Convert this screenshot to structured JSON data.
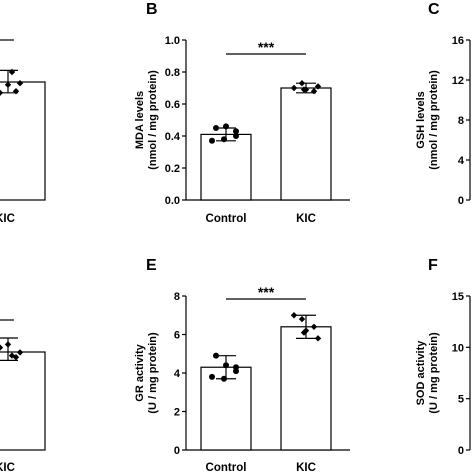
{
  "panels": [
    {
      "id": "A",
      "label": "",
      "ylabel": [
        "",
        ""
      ],
      "ylim": [
        0,
        1
      ],
      "ticks": [],
      "categories": [
        "",
        "KIC"
      ],
      "significance": "",
      "kic_mean": 0.74,
      "kic_sd": 0.07,
      "kic_points": [
        0.68,
        0.72,
        0.73,
        0.8,
        0.67,
        0.68
      ]
    },
    {
      "id": "B",
      "label": "B",
      "ylabel": [
        "MDA levels",
        "(nmol / mg protein)"
      ],
      "ylim": [
        0,
        1.0
      ],
      "ticks": [
        "0.0",
        "0.2",
        "0.4",
        "0.6",
        "0.8",
        "1.0"
      ],
      "categories": [
        "Control",
        "KIC"
      ],
      "significance": "***"
    },
    {
      "id": "C",
      "label": "C",
      "ylabel": [
        "GSH levels",
        "(nmol / mg protein)"
      ],
      "ylim": [
        0,
        16
      ],
      "ticks": [
        "0",
        "4",
        "8",
        "12",
        "16"
      ],
      "categories": [],
      "significance": ""
    },
    {
      "id": "D",
      "label": "",
      "ylabel": [
        "",
        ""
      ],
      "ylim": [
        0,
        1
      ],
      "ticks": [],
      "categories": [
        "",
        "KIC"
      ],
      "significance": "",
      "kic_mean": 0.63,
      "kic_sd": 0.07,
      "kic_points": [
        0.64,
        0.66,
        0.61,
        0.59,
        0.64,
        0.58
      ]
    },
    {
      "id": "E",
      "label": "E",
      "ylabel": [
        "GR activity",
        "(U / mg protein)"
      ],
      "ylim": [
        0,
        8
      ],
      "ticks": [
        "0",
        "2",
        "4",
        "6",
        "8"
      ],
      "categories": [
        "Control",
        "KIC"
      ],
      "significance": "***"
    },
    {
      "id": "F",
      "label": "F",
      "ylabel": [
        "SOD activity",
        "(U / mg protein)"
      ],
      "ylim": [
        0,
        15
      ],
      "ticks": [
        "0",
        "5",
        "10",
        "15"
      ],
      "categories": [],
      "significance": ""
    }
  ],
  "chart_data": [
    {
      "panel": "B",
      "type": "bar",
      "title": "",
      "ylabel": "MDA levels (nmol / mg protein)",
      "ylim": [
        0,
        1.0
      ],
      "categories": [
        "Control",
        "KIC"
      ],
      "values": [
        0.41,
        0.7
      ],
      "error": [
        0.04,
        0.03
      ],
      "points": [
        [
          0.45,
          0.46,
          0.43,
          0.37,
          0.38,
          0.4
        ],
        [
          0.7,
          0.73,
          0.68,
          0.69,
          0.71,
          0.69
        ]
      ],
      "significance": "***"
    },
    {
      "panel": "E",
      "type": "bar",
      "title": "",
      "ylabel": "GR activity (U / mg protein)",
      "ylim": [
        0,
        8
      ],
      "categories": [
        "Control",
        "KIC"
      ],
      "values": [
        4.3,
        6.4
      ],
      "error": [
        0.6,
        0.6
      ],
      "points": [
        [
          4.9,
          4.4,
          4.3,
          3.8,
          3.7,
          4.1
        ],
        [
          7.0,
          6.8,
          6.4,
          6.1,
          5.8,
          6.2
        ]
      ],
      "significance": "***"
    }
  ]
}
